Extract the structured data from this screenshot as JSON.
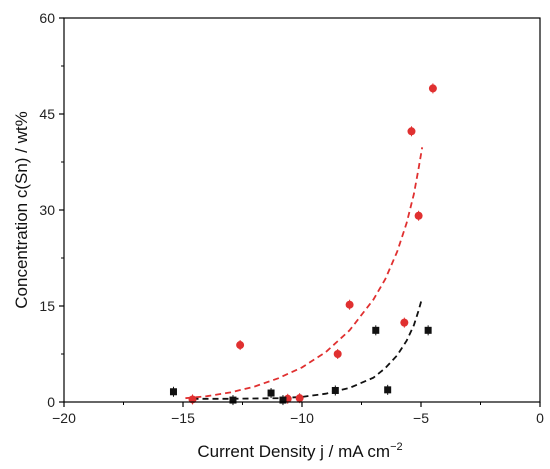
{
  "chart_data": {
    "type": "scatter",
    "xlabel": "Current Density j  /  mA cm",
    "xlabel_superscript": "−2",
    "ylabel": "Concentration c(Sn)  /  wt%",
    "xlim": [
      -20,
      0
    ],
    "ylim": [
      0,
      60
    ],
    "x_ticks": [
      -20,
      -15,
      -10,
      -5,
      0
    ],
    "y_ticks": [
      0,
      15,
      30,
      45,
      60
    ],
    "x_tick_labels": [
      "−20",
      "−15",
      "−10",
      "−5",
      "0"
    ],
    "y_tick_labels": [
      "0",
      "15",
      "30",
      "45",
      "60"
    ],
    "grid": false,
    "series": [
      {
        "color": "#e03030",
        "marker": "circle",
        "points": [
          {
            "x": -14.6,
            "y": 0.4
          },
          {
            "x": -12.6,
            "y": 8.9
          },
          {
            "x": -10.6,
            "y": 0.5
          },
          {
            "x": -10.1,
            "y": 0.6
          },
          {
            "x": -8.5,
            "y": 7.5
          },
          {
            "x": -8.0,
            "y": 15.2
          },
          {
            "x": -5.7,
            "y": 12.4
          },
          {
            "x": -5.4,
            "y": 42.3
          },
          {
            "x": -5.1,
            "y": 29.1
          },
          {
            "x": -4.5,
            "y": 49.0
          }
        ],
        "fit": {
          "style": "dashed",
          "points": [
            {
              "x": -14.9,
              "y": 0.6
            },
            {
              "x": -14.0,
              "y": 0.9
            },
            {
              "x": -13.0,
              "y": 1.5
            },
            {
              "x": -12.0,
              "y": 2.4
            },
            {
              "x": -11.0,
              "y": 3.7
            },
            {
              "x": -10.0,
              "y": 5.4
            },
            {
              "x": -9.0,
              "y": 7.8
            },
            {
              "x": -8.0,
              "y": 11.2
            },
            {
              "x": -7.0,
              "y": 16.0
            },
            {
              "x": -6.5,
              "y": 19.2
            },
            {
              "x": -6.0,
              "y": 23.5
            },
            {
              "x": -5.6,
              "y": 28.0
            },
            {
              "x": -5.3,
              "y": 32.5
            },
            {
              "x": -5.1,
              "y": 36.5
            },
            {
              "x": -4.95,
              "y": 39.8
            }
          ]
        }
      },
      {
        "color": "#111111",
        "marker": "square",
        "points": [
          {
            "x": -15.4,
            "y": 1.6
          },
          {
            "x": -12.9,
            "y": 0.3
          },
          {
            "x": -11.3,
            "y": 1.4
          },
          {
            "x": -10.8,
            "y": 0.3
          },
          {
            "x": -8.6,
            "y": 1.8
          },
          {
            "x": -6.9,
            "y": 11.2
          },
          {
            "x": -6.4,
            "y": 1.9
          },
          {
            "x": -4.7,
            "y": 11.2
          }
        ],
        "fit": {
          "style": "dashed",
          "points": [
            {
              "x": -14.6,
              "y": 0.5
            },
            {
              "x": -13.0,
              "y": 0.5
            },
            {
              "x": -11.0,
              "y": 0.6
            },
            {
              "x": -10.0,
              "y": 0.8
            },
            {
              "x": -9.0,
              "y": 1.3
            },
            {
              "x": -8.0,
              "y": 2.2
            },
            {
              "x": -7.0,
              "y": 3.8
            },
            {
              "x": -6.5,
              "y": 5.3
            },
            {
              "x": -6.0,
              "y": 7.3
            },
            {
              "x": -5.6,
              "y": 9.6
            },
            {
              "x": -5.3,
              "y": 12.0
            },
            {
              "x": -5.1,
              "y": 14.3
            },
            {
              "x": -4.95,
              "y": 16.3
            }
          ]
        }
      }
    ]
  }
}
